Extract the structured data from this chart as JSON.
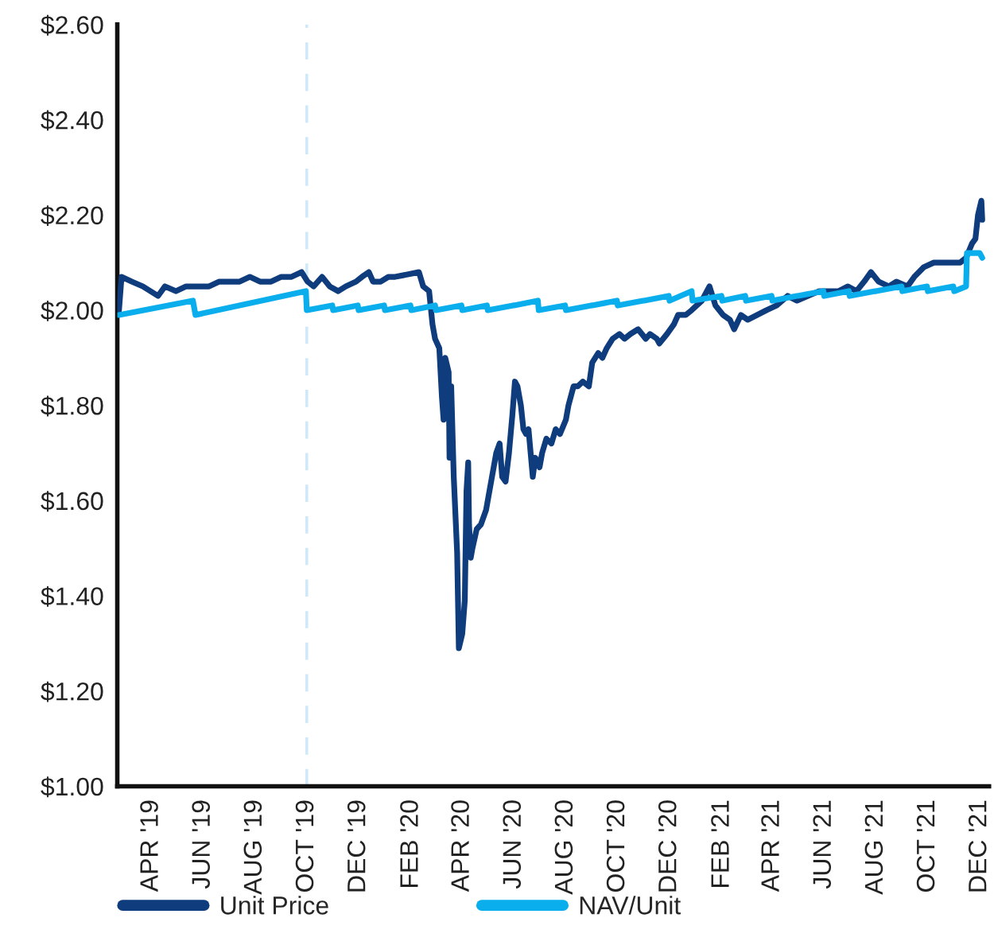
{
  "chart_data": {
    "type": "line",
    "xlim": [
      "2019-02-20",
      "2021-12-12"
    ],
    "xticks": [
      {
        "value": "2019-04-01",
        "label": "APR '19"
      },
      {
        "value": "2019-06-01",
        "label": "JUN '19"
      },
      {
        "value": "2019-08-01",
        "label": "AUG '19"
      },
      {
        "value": "2019-10-01",
        "label": "OCT '19"
      },
      {
        "value": "2019-12-01",
        "label": "DEC '19"
      },
      {
        "value": "2020-02-01",
        "label": "FEB '20"
      },
      {
        "value": "2020-04-01",
        "label": "APR '20"
      },
      {
        "value": "2020-06-01",
        "label": "JUN '20"
      },
      {
        "value": "2020-08-01",
        "label": "AUG '20"
      },
      {
        "value": "2020-10-01",
        "label": "OCT '20"
      },
      {
        "value": "2020-12-01",
        "label": "DEC '20"
      },
      {
        "value": "2021-02-01",
        "label": "FEB '21"
      },
      {
        "value": "2021-04-01",
        "label": "APR '21"
      },
      {
        "value": "2021-06-01",
        "label": "JUN '21"
      },
      {
        "value": "2021-08-01",
        "label": "AUG '21"
      },
      {
        "value": "2021-10-01",
        "label": "OCT '21"
      },
      {
        "value": "2021-12-01",
        "label": "DEC '21"
      }
    ],
    "ylim": [
      1.0,
      2.6
    ],
    "yticks": [
      {
        "value": 1.0,
        "label": "$1.00"
      },
      {
        "value": 1.2,
        "label": "$1.20"
      },
      {
        "value": 1.4,
        "label": "$1.40"
      },
      {
        "value": 1.6,
        "label": "$1.60"
      },
      {
        "value": 1.8,
        "label": "$1.80"
      },
      {
        "value": 2.0,
        "label": "$2.00"
      },
      {
        "value": 2.2,
        "label": "$2.20"
      },
      {
        "value": 2.4,
        "label": "$2.40"
      },
      {
        "value": 2.6,
        "label": "$2.60"
      }
    ],
    "ref_lines": [
      {
        "axis": "x",
        "value": "2019-10-01",
        "color": "#cfe9f8",
        "line_style": "dashed"
      }
    ],
    "legend": "bottom",
    "series": [
      {
        "name": "Unit Price",
        "color": "#0f3c7c",
        "x": [
          "2019-02-22",
          "2019-02-25",
          "2019-03-09",
          "2019-03-22",
          "2019-04-09",
          "2019-04-17",
          "2019-04-30",
          "2019-05-12",
          "2019-05-25",
          "2019-06-08",
          "2019-06-20",
          "2019-07-01",
          "2019-07-14",
          "2019-07-26",
          "2019-08-07",
          "2019-08-20",
          "2019-09-01",
          "2019-09-13",
          "2019-09-25",
          "2019-10-02",
          "2019-10-09",
          "2019-10-19",
          "2019-10-28",
          "2019-11-07",
          "2019-11-16",
          "2019-11-28",
          "2019-12-05",
          "2019-12-13",
          "2019-12-18",
          "2019-12-27",
          "2020-01-05",
          "2020-01-13",
          "2020-02-10",
          "2020-02-15",
          "2020-02-22",
          "2020-02-26",
          "2020-02-29",
          "2020-03-05",
          "2020-03-08",
          "2020-03-10",
          "2020-03-12",
          "2020-03-16",
          "2020-03-17",
          "2020-03-19",
          "2020-03-22",
          "2020-03-26",
          "2020-03-28",
          "2020-04-01",
          "2020-04-04",
          "2020-04-06",
          "2020-04-08",
          "2020-04-09",
          "2020-04-11",
          "2020-04-13",
          "2020-04-18",
          "2020-04-23",
          "2020-04-29",
          "2020-05-06",
          "2020-05-11",
          "2020-05-15",
          "2020-05-18",
          "2020-05-22",
          "2020-05-26",
          "2020-05-30",
          "2020-06-02",
          "2020-06-05",
          "2020-06-09",
          "2020-06-12",
          "2020-06-15",
          "2020-06-18",
          "2020-06-23",
          "2020-06-26",
          "2020-07-01",
          "2020-07-04",
          "2020-07-09",
          "2020-07-15",
          "2020-07-20",
          "2020-07-25",
          "2020-08-01",
          "2020-08-04",
          "2020-08-10",
          "2020-08-15",
          "2020-08-21",
          "2020-08-28",
          "2020-09-01",
          "2020-09-08",
          "2020-09-13",
          "2020-09-18",
          "2020-09-25",
          "2020-10-03",
          "2020-10-09",
          "2020-10-16",
          "2020-10-25",
          "2020-11-03",
          "2020-11-08",
          "2020-11-16",
          "2020-11-19",
          "2020-11-28",
          "2020-12-06",
          "2020-12-11",
          "2020-12-20",
          "2020-12-27",
          "2021-01-08",
          "2021-01-17",
          "2021-01-24",
          "2021-02-02",
          "2021-02-10",
          "2021-02-15",
          "2021-02-23",
          "2021-03-03",
          "2021-03-14",
          "2021-03-25",
          "2021-04-06",
          "2021-04-19",
          "2021-04-30",
          "2021-05-13",
          "2021-05-26",
          "2021-06-06",
          "2021-06-18",
          "2021-06-29",
          "2021-07-09",
          "2021-07-18",
          "2021-07-26",
          "2021-08-04",
          "2021-08-16",
          "2021-08-25",
          "2021-09-07",
          "2021-09-15",
          "2021-09-26",
          "2021-10-08",
          "2021-10-16",
          "2021-10-27",
          "2021-11-08",
          "2021-11-15",
          "2021-11-22",
          "2021-11-26",
          "2021-11-29",
          "2021-12-03",
          "2021-12-04"
        ],
        "values": [
          2.0,
          2.07,
          2.06,
          2.05,
          2.03,
          2.05,
          2.04,
          2.05,
          2.05,
          2.05,
          2.06,
          2.06,
          2.06,
          2.07,
          2.06,
          2.06,
          2.07,
          2.07,
          2.08,
          2.06,
          2.05,
          2.07,
          2.05,
          2.04,
          2.05,
          2.06,
          2.07,
          2.08,
          2.06,
          2.06,
          2.07,
          2.07,
          2.08,
          2.05,
          2.04,
          1.97,
          1.94,
          1.92,
          1.82,
          1.77,
          1.9,
          1.87,
          1.69,
          1.84,
          1.65,
          1.49,
          1.29,
          1.32,
          1.39,
          1.62,
          1.68,
          1.55,
          1.48,
          1.5,
          1.54,
          1.55,
          1.58,
          1.65,
          1.7,
          1.72,
          1.65,
          1.64,
          1.7,
          1.78,
          1.85,
          1.84,
          1.8,
          1.75,
          1.74,
          1.75,
          1.65,
          1.69,
          1.67,
          1.7,
          1.73,
          1.72,
          1.75,
          1.74,
          1.77,
          1.8,
          1.84,
          1.84,
          1.85,
          1.84,
          1.89,
          1.91,
          1.9,
          1.92,
          1.94,
          1.95,
          1.94,
          1.95,
          1.96,
          1.94,
          1.95,
          1.94,
          1.93,
          1.95,
          1.97,
          1.99,
          1.99,
          2.0,
          2.02,
          2.05,
          2.01,
          1.99,
          1.98,
          1.96,
          1.99,
          1.98,
          1.99,
          2.0,
          2.01,
          2.03,
          2.02,
          2.03,
          2.04,
          2.04,
          2.04,
          2.05,
          2.04,
          2.06,
          2.08,
          2.06,
          2.05,
          2.06,
          2.05,
          2.07,
          2.09,
          2.1,
          2.1,
          2.1,
          2.1,
          2.11,
          2.14,
          2.15,
          2.2,
          2.23,
          2.19
        ]
      },
      {
        "name": "NAV/Unit",
        "color": "#0aaeec",
        "x": [
          "2019-02-22",
          "2019-05-20",
          "2019-05-23",
          "2019-09-30",
          "2019-10-01",
          "2019-10-31",
          "2019-11-01",
          "2019-11-30",
          "2019-12-01",
          "2019-12-31",
          "2020-01-01",
          "2020-01-31",
          "2020-02-01",
          "2020-02-29",
          "2020-03-01",
          "2020-03-31",
          "2020-04-01",
          "2020-04-30",
          "2020-05-01",
          "2020-05-31",
          "2020-06-01",
          "2020-06-29",
          "2020-06-30",
          "2020-07-31",
          "2020-08-01",
          "2020-08-31",
          "2020-09-01",
          "2020-09-30",
          "2020-10-01",
          "2020-10-31",
          "2020-11-01",
          "2020-11-30",
          "2020-12-01",
          "2020-12-27",
          "2020-12-28",
          "2021-01-31",
          "2021-02-01",
          "2021-02-28",
          "2021-03-01",
          "2021-03-31",
          "2021-04-01",
          "2021-04-30",
          "2021-05-01",
          "2021-05-31",
          "2021-06-01",
          "2021-06-30",
          "2021-07-01",
          "2021-07-31",
          "2021-08-01",
          "2021-08-31",
          "2021-09-01",
          "2021-09-30",
          "2021-10-01",
          "2021-10-31",
          "2021-11-01",
          "2021-11-15",
          "2021-11-16",
          "2021-12-01",
          "2021-12-04"
        ],
        "values": [
          1.99,
          2.02,
          1.99,
          2.04,
          2.0,
          2.01,
          2.0,
          2.01,
          2.0,
          2.01,
          2.0,
          2.01,
          2.0,
          2.01,
          2.0,
          2.01,
          2.0,
          2.01,
          2.0,
          2.01,
          2.01,
          2.02,
          2.0,
          2.01,
          2.0,
          2.01,
          2.01,
          2.02,
          2.01,
          2.02,
          2.02,
          2.03,
          2.02,
          2.04,
          2.02,
          2.03,
          2.02,
          2.03,
          2.02,
          2.03,
          2.02,
          2.03,
          2.03,
          2.04,
          2.03,
          2.04,
          2.03,
          2.04,
          2.04,
          2.05,
          2.04,
          2.05,
          2.04,
          2.05,
          2.04,
          2.05,
          2.12,
          2.12,
          2.11
        ]
      }
    ]
  }
}
